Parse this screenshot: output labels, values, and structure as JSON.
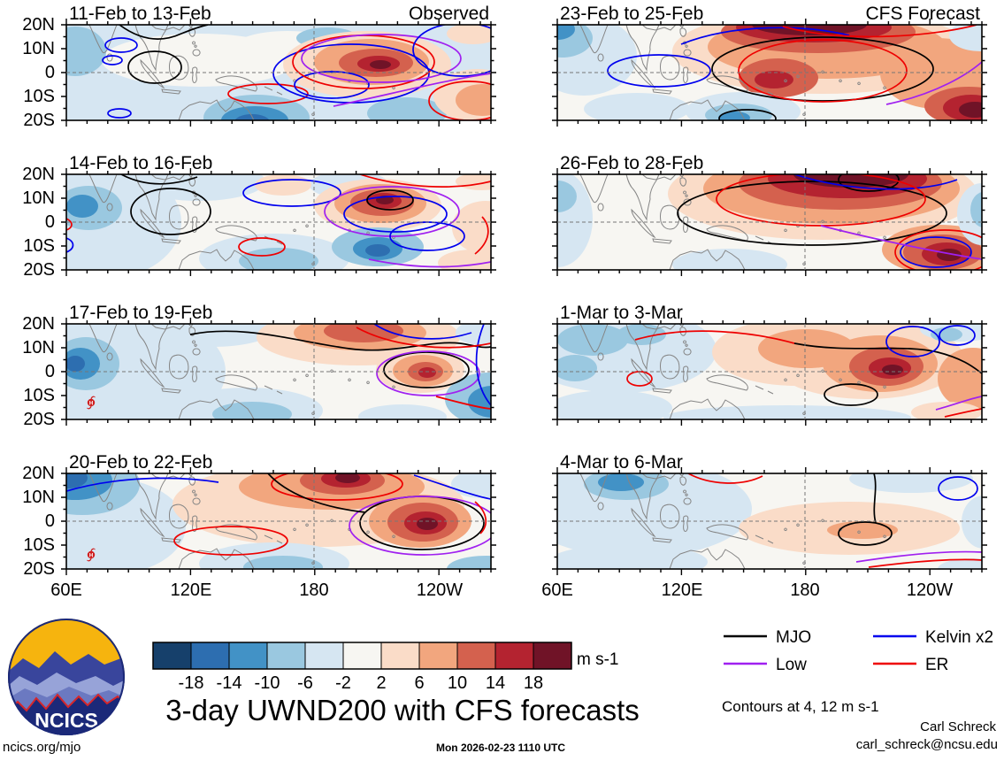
{
  "figure": {
    "title": "3-day UWND200 with CFS forecasts",
    "site": "ncics.org/mjo",
    "timestamp": "Mon 2026-02-23 1110 UTC",
    "author": "Carl Schreck",
    "email": "carl_schreck@ncsu.edu",
    "contour_note": "Contours at 4, 12 m s-1",
    "units_label": "m s-1",
    "logo_text": "NCICS"
  },
  "panels": [
    {
      "title": "11-Feb to 13-Feb",
      "label": "Observed"
    },
    {
      "title": "23-Feb to 25-Feb",
      "label": "CFS Forecast"
    },
    {
      "title": "14-Feb to 16-Feb"
    },
    {
      "title": "26-Feb to 28-Feb"
    },
    {
      "title": "17-Feb to 19-Feb"
    },
    {
      "title": "1-Mar to 3-Mar"
    },
    {
      "title": "20-Feb to 22-Feb"
    },
    {
      "title": "4-Mar to 6-Mar"
    }
  ],
  "axes": {
    "lat_labels": [
      "20N",
      "10N",
      "0",
      "10S",
      "20S"
    ],
    "lon_labels": [
      "60E",
      "120E",
      "180",
      "120W"
    ]
  },
  "colorbar": {
    "levels": [
      "-18",
      "-14",
      "-10",
      "-6",
      "-2",
      "2",
      "6",
      "10",
      "14",
      "18"
    ],
    "colors": [
      "#16406b",
      "#2d6eb0",
      "#4292c6",
      "#9ac8e0",
      "#d6e6f2",
      "#f7f6f2",
      "#fadcc8",
      "#f2a67e",
      "#d4614e",
      "#b42330",
      "#701327"
    ]
  },
  "legend": {
    "items": [
      {
        "label": "MJO",
        "color": "#000000"
      },
      {
        "label": "Kelvin x2",
        "color": "#0000ee"
      },
      {
        "label": "Low",
        "color": "#a020f0"
      },
      {
        "label": "ER",
        "color": "#ee0000"
      }
    ]
  },
  "chart_data": {
    "type": "heatmap",
    "title": "3-day UWND200 with CFS forecasts",
    "variable": "200-hPa zonal wind anomaly (UWND200), 3-day means",
    "units": "m s-1",
    "layout": "4 rows x 2 columns of longitude-latitude maps; left column Observed, right column CFS Forecast",
    "x_ticks": [
      "60E",
      "120E",
      "180",
      "120W"
    ],
    "y_ticks": [
      "20N",
      "10N",
      "0",
      "10S",
      "20S"
    ],
    "colorbar_levels": [
      -18,
      -14,
      -10,
      -6,
      -2,
      2,
      6,
      10,
      14,
      18
    ],
    "colorbar_colors": [
      "#16406b",
      "#2d6eb0",
      "#4292c6",
      "#9ac8e0",
      "#d6e6f2",
      "#f7f6f2",
      "#fadcc8",
      "#f2a67e",
      "#d4614e",
      "#b42330",
      "#701327"
    ],
    "panels": [
      {
        "title": "11-Feb to 13-Feb",
        "source": "Observed"
      },
      {
        "title": "14-Feb to 16-Feb",
        "source": "Observed"
      },
      {
        "title": "17-Feb to 19-Feb",
        "source": "Observed"
      },
      {
        "title": "20-Feb to 22-Feb",
        "source": "Observed"
      },
      {
        "title": "23-Feb to 25-Feb",
        "source": "CFS Forecast"
      },
      {
        "title": "26-Feb to 28-Feb",
        "source": "CFS Forecast"
      },
      {
        "title": "1-Mar to 3-Mar",
        "source": "CFS Forecast"
      },
      {
        "title": "4-Mar to 6-Mar",
        "source": "CFS Forecast"
      }
    ],
    "contour_overlays": [
      {
        "name": "MJO",
        "color": "black"
      },
      {
        "name": "Kelvin x2",
        "color": "blue"
      },
      {
        "name": "Low",
        "color": "purple"
      },
      {
        "name": "ER",
        "color": "red"
      }
    ],
    "contour_levels_note": "Contours at 4, 12 m s-1"
  }
}
